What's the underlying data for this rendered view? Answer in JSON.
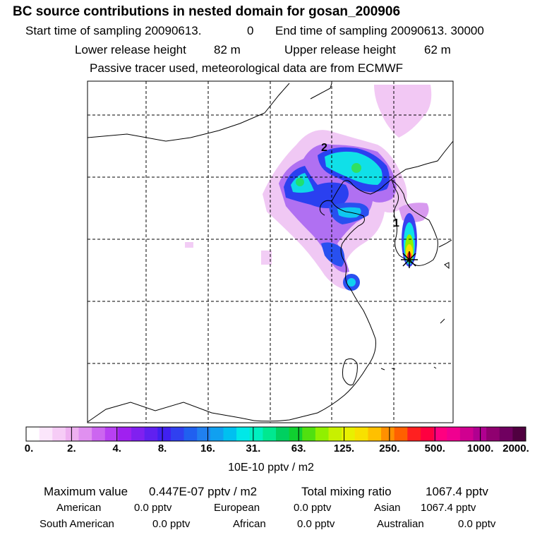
{
  "header": {
    "title": "BC  source contributions in nested domain for gosan_200906",
    "start_label": "Start time of sampling 20090613.",
    "start_value": "0",
    "end_label": "End time of sampling 20090613. 30000",
    "lower_label": "Lower release height",
    "lower_value": "82 m",
    "upper_label": "Upper release height",
    "upper_value": "62 m",
    "tracer_note": "Passive tracer used, meteorological data are from ECMWF"
  },
  "map": {
    "marker_1": "1",
    "marker_2": "2",
    "colors": {
      "frame": "#000000",
      "grid": "#000000",
      "coast": "#000000"
    }
  },
  "colorbar": {
    "tick_labels": [
      "0.",
      "2.",
      "4.",
      "8.",
      "16.",
      "31.",
      "63.",
      "125.",
      "250.",
      "500.",
      "1000.",
      "2000."
    ],
    "colors": [
      "#ffffff",
      "#fbe6fb",
      "#f6ccf6",
      "#eeb0f0",
      "#e090f0",
      "#cc66f0",
      "#b840f2",
      "#a020f0",
      "#8020f0",
      "#6020f0",
      "#4020f0",
      "#3040f0",
      "#2060f0",
      "#2080f0",
      "#10a0f0",
      "#00c0f0",
      "#00e8e8",
      "#00f0c0",
      "#00e890",
      "#00d060",
      "#10d030",
      "#50e010",
      "#90f000",
      "#c8f000",
      "#e8f000",
      "#f8e000",
      "#ffc000",
      "#ff9000",
      "#ff6000",
      "#ff2020",
      "#ff0040",
      "#ff0080",
      "#f00090",
      "#d00090",
      "#b00090",
      "#900070",
      "#700060",
      "#500040"
    ],
    "unit": "10E-10 pptv / m2"
  },
  "summary": {
    "max_label": "Maximum value",
    "max_value": "0.447E-07 pptv / m2",
    "total_label": "Total mixing ratio",
    "total_value": "1067.4 pptv",
    "american_label": "American",
    "american_value": "0.0 pptv",
    "european_label": "European",
    "european_value": "0.0 pptv",
    "asian_label": "Asian",
    "asian_value": "1067.4 pptv",
    "south_american_label": "South American",
    "south_american_value": "0.0 pptv",
    "african_label": "African",
    "african_value": "0.0 pptv",
    "australian_label": "Australian",
    "australian_value": "0.0 pptv"
  }
}
